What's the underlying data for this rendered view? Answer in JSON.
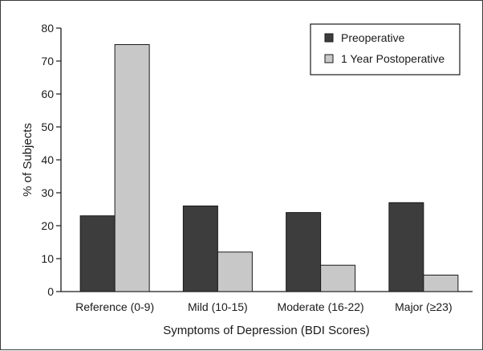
{
  "chart_data": {
    "type": "bar",
    "title": "",
    "xlabel": "Symptoms of Depression (BDI Scores)",
    "ylabel": "% of Subjects",
    "categories": [
      "Reference (0-9)",
      "Mild (10-15)",
      "Moderate (16-22)",
      "Major (≥23)"
    ],
    "series": [
      {
        "name": "Preoperative",
        "color": "#3d3d3d",
        "values": [
          23,
          26,
          24,
          27
        ]
      },
      {
        "name": "1 Year Postoperative",
        "color": "#c8c8c8",
        "values": [
          75,
          12,
          8,
          5
        ]
      }
    ],
    "ylim": [
      0,
      80
    ],
    "yticks": [
      0,
      10,
      20,
      30,
      40,
      50,
      60,
      70,
      80
    ],
    "grid": false,
    "legend_position": "top-right"
  }
}
